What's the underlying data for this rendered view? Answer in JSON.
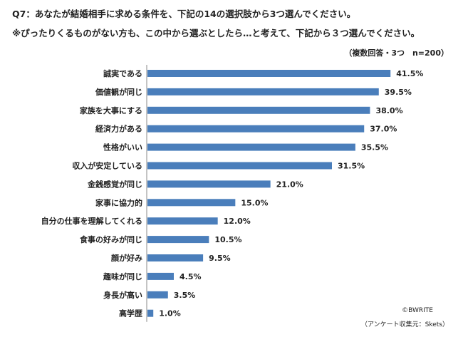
{
  "header": {
    "title": "Q7：あなたが結婚相手に求める条件を、下記の14の選択肢から3つ選んでください。",
    "note": "※ぴったりくるものがない方も、この中から選ぶとしたら…と考えて、下記から３つ選んでください。",
    "sample": "（複数回答・3つ　n=200）"
  },
  "colors": {
    "bar": "#4a7ebb",
    "axis": "#888888"
  },
  "chart_data": {
    "type": "bar",
    "orientation": "horizontal",
    "title": "Q7：あなたが結婚相手に求める条件を、下記の14の選択肢から3つ選んでください。",
    "xlabel": "",
    "ylabel": "",
    "xlim": [
      0,
      45
    ],
    "unit": "%",
    "categories": [
      "誠実である",
      "価値観が同じ",
      "家族を大事にする",
      "経済力がある",
      "性格がいい",
      "収入が安定している",
      "金銭感覚が同じ",
      "家事に協力的",
      "自分の仕事を理解してくれる",
      "食事の好みが同じ",
      "顔が好み",
      "趣味が同じ",
      "身長が高い",
      "高学歴"
    ],
    "values": [
      41.5,
      39.5,
      38.0,
      37.0,
      35.5,
      31.5,
      21.0,
      15.0,
      12.0,
      10.5,
      9.5,
      4.5,
      3.5,
      1.0
    ],
    "value_labels": [
      "41.5%",
      "39.5%",
      "38.0%",
      "37.0%",
      "35.5%",
      "31.5%",
      "21.0%",
      "15.0%",
      "12.0%",
      "10.5%",
      "9.5%",
      "4.5%",
      "3.5%",
      "1.0%"
    ]
  },
  "credits": {
    "copyright": "©BWRITE",
    "source": "（アンケート収集元：Skets）"
  }
}
